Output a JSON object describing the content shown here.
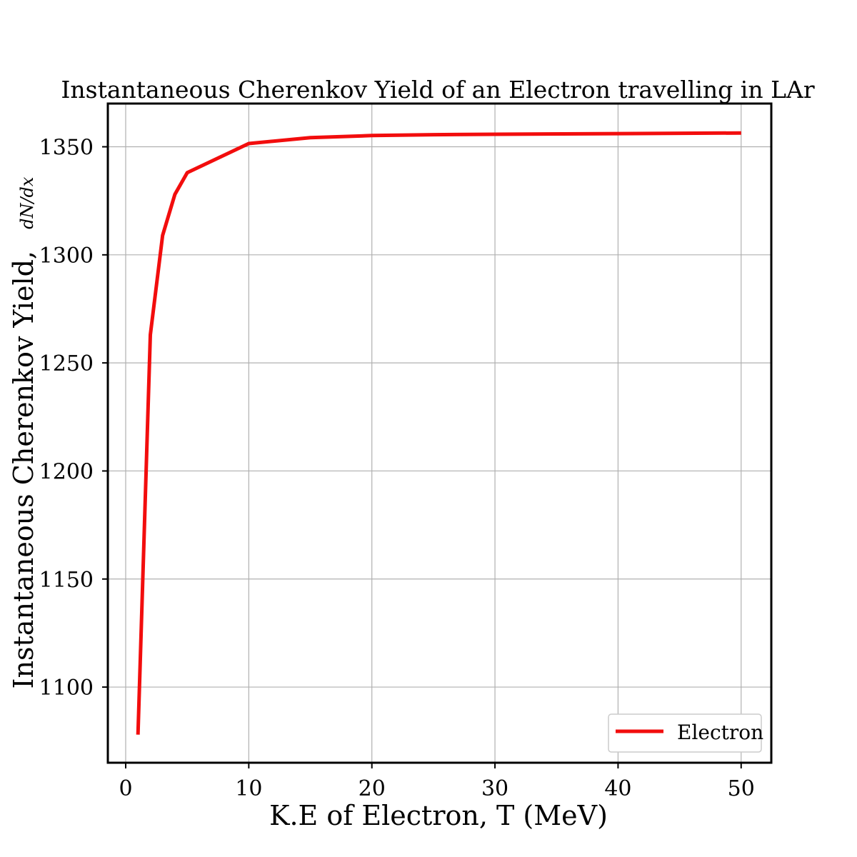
{
  "chart_data": {
    "type": "line",
    "title": "Instantaneous Cherenkov Yield of an Electron travelling in LAr",
    "xlabel": "K.E of Electron, T (MeV)",
    "ylabel": "Instantaneous Cherenkov Yield, ",
    "ylabel_fraction": {
      "numerator": "dN",
      "denominator": "dx"
    },
    "xlim": [
      -1.45,
      52.45
    ],
    "ylim": [
      1065,
      1370
    ],
    "xticks": [
      0,
      10,
      20,
      30,
      40,
      50
    ],
    "yticks": [
      1100,
      1150,
      1200,
      1250,
      1300,
      1350
    ],
    "grid": true,
    "legend_position": "lower-right",
    "series": [
      {
        "name": "Electron",
        "color": "#f20d0d",
        "x": [
          1,
          2,
          3,
          4,
          5,
          10,
          15,
          20,
          25,
          30,
          40,
          50
        ],
        "y": [
          1078,
          1263,
          1309,
          1328,
          1338,
          1351.5,
          1354.2,
          1355.2,
          1355.6,
          1355.8,
          1356.1,
          1356.4
        ]
      }
    ]
  }
}
